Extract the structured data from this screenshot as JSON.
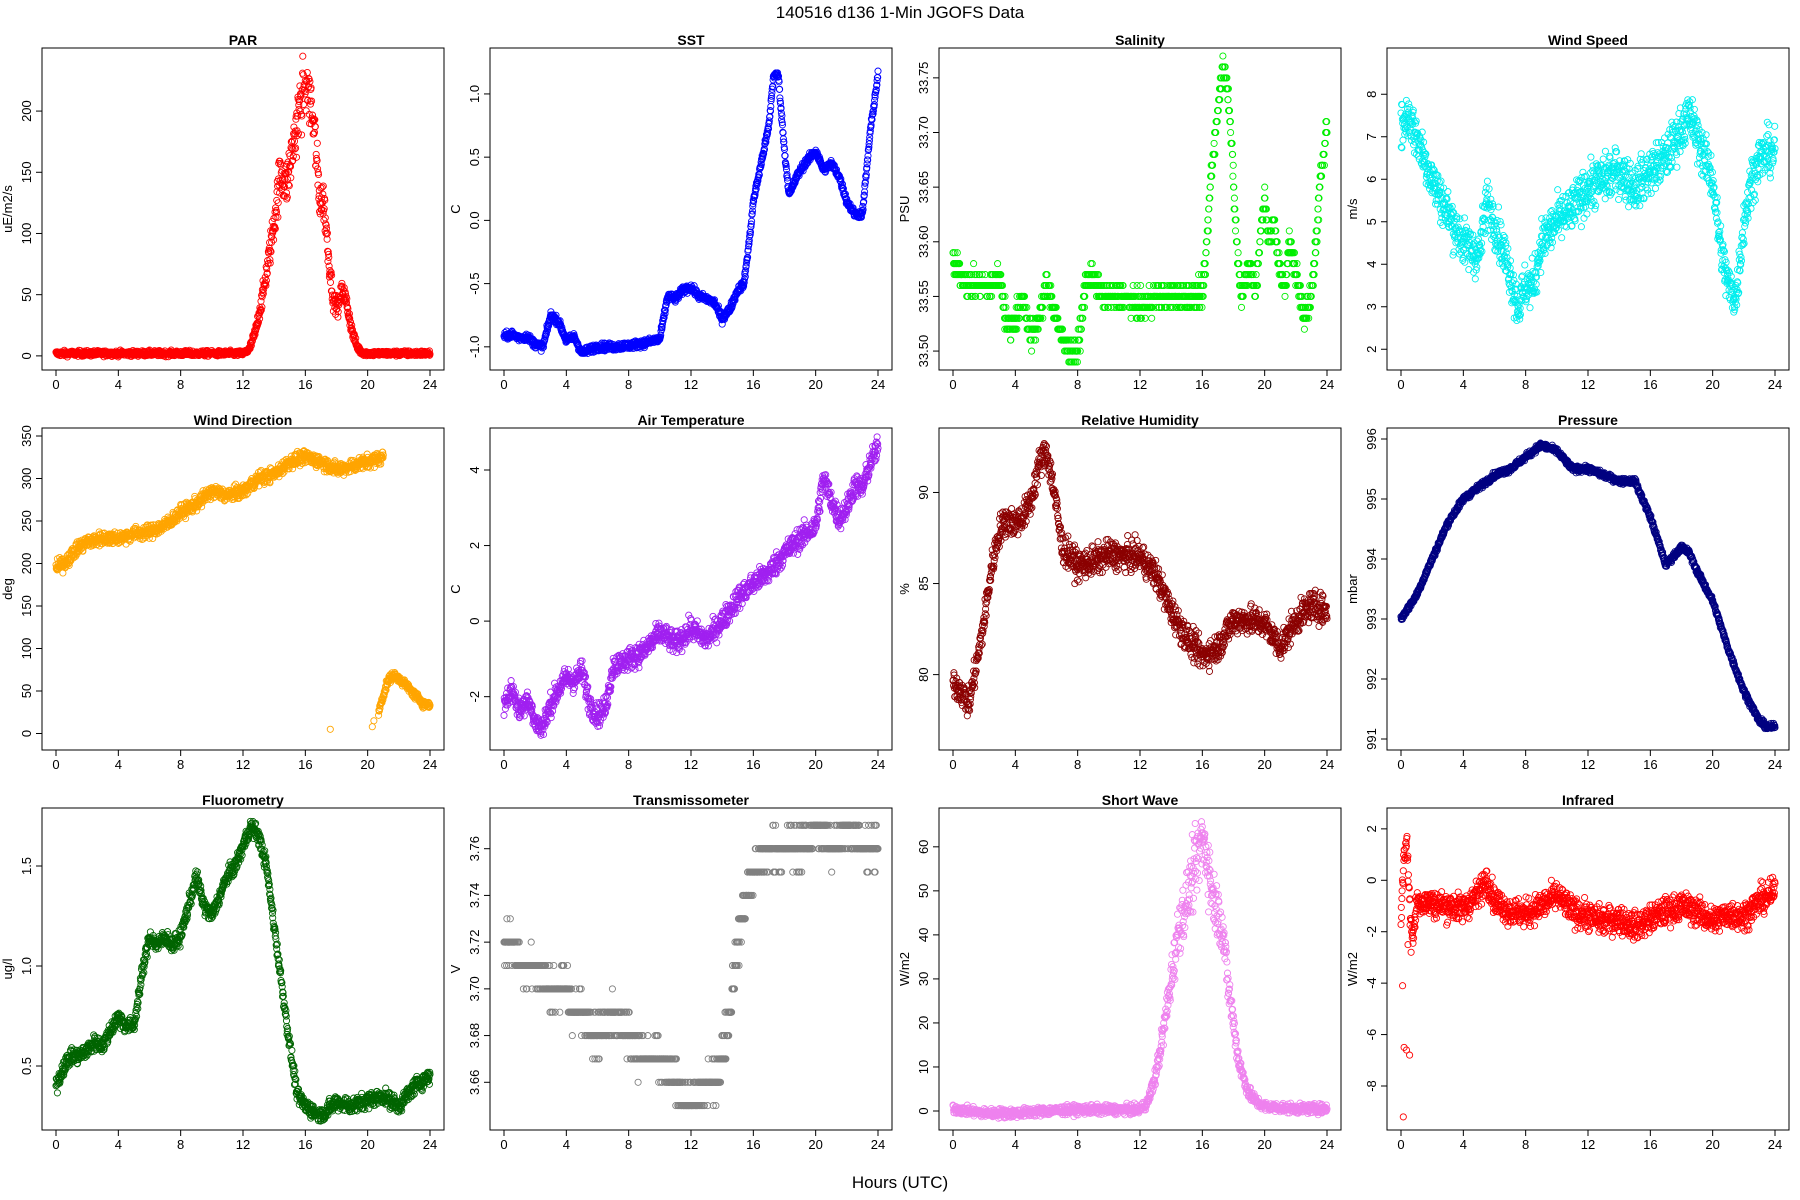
{
  "page_title": "140516   d136   1-Min  JGOFS Data",
  "x_axis_label": "Hours (UTC)",
  "chart_data": [
    {
      "type": "scatter",
      "title": "PAR",
      "ylabel": "uE/m2/s",
      "color": "#ff0000",
      "xlim": [
        0,
        24
      ],
      "ylim": [
        -5,
        245
      ],
      "xticks": [
        0,
        4,
        8,
        12,
        16,
        20,
        24
      ],
      "yticks": [
        0,
        50,
        100,
        150,
        200
      ],
      "ytick_labels": [
        "0",
        "50",
        "100",
        "150",
        "200"
      ],
      "series_x": [
        0,
        2,
        4,
        6,
        8,
        10,
        12,
        12.4,
        12.8,
        13.2,
        13.6,
        14,
        14.4,
        14.8,
        15.2,
        15.6,
        16,
        16.3,
        16.6,
        16.9,
        17.2,
        17.5,
        17.8,
        18.1,
        18.4,
        18.7,
        19,
        19.3,
        19.6,
        20,
        20.5,
        22,
        24
      ],
      "series_y": [
        2,
        2,
        2,
        2,
        2,
        2,
        2,
        5,
        20,
        45,
        75,
        110,
        150,
        140,
        170,
        200,
        230,
        210,
        180,
        130,
        125,
        80,
        45,
        40,
        55,
        40,
        20,
        8,
        3,
        2,
        2,
        2,
        2
      ],
      "noise": 0.12,
      "noise_abs": 2
    },
    {
      "type": "scatter",
      "title": "SST",
      "ylabel": "C",
      "color": "#0000ff",
      "xlim": [
        0,
        24
      ],
      "ylim": [
        -1.12,
        1.3
      ],
      "xticks": [
        0,
        4,
        8,
        12,
        16,
        20,
        24
      ],
      "yticks": [
        -1,
        -0.5,
        0,
        0.5,
        1
      ],
      "ytick_labels": [
        "-1.0",
        "-0.5",
        "0.0",
        "0.5",
        "1.0"
      ],
      "series_x": [
        0,
        0.5,
        1,
        1.5,
        2,
        2.5,
        3,
        3.5,
        4,
        4.5,
        5,
        5.5,
        6,
        7,
        8,
        9,
        10,
        10.5,
        11,
        11.5,
        12,
        12.5,
        13,
        13.5,
        14,
        14.5,
        15,
        15.4,
        15.8,
        16,
        16.5,
        17,
        17.3,
        17.6,
        18,
        18.3,
        18.8,
        19.3,
        20,
        20.5,
        21,
        21.5,
        22,
        22.5,
        23,
        23.5,
        24
      ],
      "series_y": [
        -0.92,
        -0.9,
        -0.93,
        -0.92,
        -0.98,
        -1.0,
        -0.75,
        -0.8,
        -0.95,
        -0.92,
        -1.05,
        -1.02,
        -1.0,
        -1.0,
        -0.99,
        -0.97,
        -0.94,
        -0.6,
        -0.62,
        -0.55,
        -0.53,
        -0.6,
        -0.62,
        -0.65,
        -0.78,
        -0.7,
        -0.55,
        -0.5,
        -0.1,
        0.15,
        0.45,
        0.75,
        1.15,
        1.15,
        0.55,
        0.2,
        0.35,
        0.45,
        0.55,
        0.4,
        0.45,
        0.35,
        0.15,
        0.05,
        0.05,
        0.7,
        1.15
      ],
      "noise": 0,
      "noise_abs": 0.03
    },
    {
      "type": "scatter",
      "title": "Salinity",
      "ylabel": "PSU",
      "color": "#00ee00",
      "xlim": [
        0,
        24
      ],
      "ylim": [
        33.49,
        33.77
      ],
      "xticks": [
        0,
        4,
        8,
        12,
        16,
        20,
        24
      ],
      "yticks": [
        33.5,
        33.55,
        33.6,
        33.65,
        33.7,
        33.75
      ],
      "ytick_labels": [
        "33.50",
        "33.55",
        "33.60",
        "33.65",
        "33.70",
        "33.75"
      ],
      "series_x": [
        0,
        0.5,
        1,
        1.5,
        2,
        2.5,
        3,
        3.5,
        4,
        4.5,
        5,
        5.5,
        6,
        6.5,
        7,
        7.5,
        8,
        8.5,
        9,
        9.5,
        10,
        11,
        12,
        13,
        14,
        15,
        16,
        16.3,
        16.6,
        17,
        17.3,
        17.6,
        17.9,
        18.2,
        18.5,
        18.8,
        19.1,
        19.4,
        19.7,
        20,
        20.3,
        20.6,
        21,
        21.3,
        21.6,
        22,
        22.3,
        22.6,
        23,
        23.3,
        23.6,
        24
      ],
      "series_y": [
        33.58,
        33.57,
        33.56,
        33.56,
        33.56,
        33.56,
        33.57,
        33.52,
        33.53,
        33.55,
        33.51,
        33.53,
        33.56,
        33.54,
        33.51,
        33.5,
        33.5,
        33.56,
        33.57,
        33.55,
        33.55,
        33.55,
        33.54,
        33.55,
        33.55,
        33.55,
        33.55,
        33.6,
        33.67,
        33.72,
        33.76,
        33.75,
        33.68,
        33.6,
        33.55,
        33.57,
        33.58,
        33.55,
        33.6,
        33.64,
        33.6,
        33.62,
        33.57,
        33.56,
        33.6,
        33.57,
        33.55,
        33.53,
        33.55,
        33.6,
        33.66,
        33.71
      ],
      "noise": 0,
      "noise_abs": 0.012,
      "quantize": 0.01
    },
    {
      "type": "scatter",
      "title": "Wind Speed",
      "ylabel": "m/s",
      "color": "#00eeee",
      "xlim": [
        0,
        24
      ],
      "ylim": [
        1.7,
        8.9
      ],
      "xticks": [
        0,
        4,
        8,
        12,
        16,
        20,
        24
      ],
      "yticks": [
        2,
        3,
        4,
        5,
        6,
        7,
        8
      ],
      "ytick_labels": [
        "2",
        "3",
        "4",
        "5",
        "6",
        "7",
        "8"
      ],
      "series_x": [
        0,
        0.5,
        1,
        1.5,
        2,
        3,
        4,
        5,
        5.5,
        6,
        7,
        7.5,
        8,
        8.5,
        9,
        10,
        11,
        12,
        13,
        14,
        15,
        16,
        17,
        18,
        18.5,
        19,
        19.5,
        20,
        20.3,
        20.6,
        21,
        21.5,
        22,
        22.5,
        23,
        24
      ],
      "series_y": [
        7.2,
        7.5,
        7.0,
        6.5,
        6.0,
        5.2,
        4.5,
        4.2,
        5.5,
        5.0,
        3.8,
        3.0,
        3.5,
        3.5,
        4.5,
        5.0,
        5.3,
        5.8,
        6.0,
        6.2,
        5.8,
        6.2,
        6.5,
        7.2,
        7.5,
        7.0,
        6.5,
        6.0,
        5.0,
        4.2,
        3.5,
        3.2,
        5.0,
        6.0,
        6.5,
        6.7
      ],
      "noise": 0,
      "noise_abs": 0.55
    },
    {
      "type": "scatter",
      "title": "Wind Direction",
      "ylabel": "deg",
      "color": "#ffa500",
      "xlim": [
        0,
        24
      ],
      "ylim": [
        -10,
        350
      ],
      "xticks": [
        0,
        4,
        8,
        12,
        16,
        20,
        24
      ],
      "yticks": [
        0,
        50,
        100,
        150,
        200,
        250,
        300,
        350
      ],
      "ytick_labels": [
        "0",
        "50",
        "100",
        "150",
        "200",
        "250",
        "300",
        "350"
      ],
      "series_x": [
        0,
        0.5,
        1,
        1.5,
        2,
        3,
        4,
        5,
        6,
        7,
        8,
        9,
        10,
        11,
        12,
        13,
        14,
        15,
        16,
        17,
        18,
        19,
        20,
        21
      ],
      "series_y": [
        195,
        200,
        210,
        220,
        225,
        230,
        230,
        235,
        237,
        245,
        260,
        270,
        285,
        280,
        285,
        300,
        305,
        320,
        325,
        320,
        310,
        315,
        320,
        325
      ],
      "noise": 0,
      "noise_abs": 8,
      "series2_x": [
        20.7,
        21,
        21.3,
        21.6,
        22,
        22.4,
        22.8,
        23.2,
        23.6,
        24
      ],
      "series2_y": [
        25,
        45,
        62,
        68,
        65,
        58,
        50,
        42,
        35,
        33
      ],
      "extra_x": [
        17.6,
        20.3,
        20.4
      ],
      "extra_y": [
        5,
        8,
        15
      ]
    },
    {
      "type": "scatter",
      "title": "Air Temperature",
      "ylabel": "C",
      "color": "#a020f0",
      "xlim": [
        0,
        24
      ],
      "ylim": [
        -3.2,
        4.9
      ],
      "xticks": [
        0,
        4,
        8,
        12,
        16,
        20,
        24
      ],
      "yticks": [
        -2,
        0,
        2,
        4
      ],
      "ytick_labels": [
        "-2",
        "0",
        "2",
        "4"
      ],
      "series_x": [
        0,
        0.5,
        1,
        1.5,
        2,
        2.5,
        3,
        3.5,
        4,
        4.5,
        5,
        5.5,
        6,
        6.5,
        7,
        8,
        9,
        10,
        11,
        12,
        13,
        14,
        15,
        16,
        17,
        18,
        19,
        20,
        20.5,
        21,
        21.5,
        22,
        22.5,
        23,
        23.5,
        24
      ],
      "series_y": [
        -2.2,
        -1.8,
        -2.4,
        -2.0,
        -2.7,
        -2.8,
        -2.2,
        -1.8,
        -1.5,
        -1.6,
        -1.3,
        -2.2,
        -2.5,
        -2.3,
        -1.2,
        -1.0,
        -0.8,
        -0.3,
        -0.6,
        -0.2,
        -0.5,
        0,
        0.6,
        1.0,
        1.3,
        1.8,
        2.2,
        2.5,
        3.8,
        3.2,
        2.7,
        3.0,
        3.6,
        3.5,
        4.2,
        4.6
      ],
      "noise": 0,
      "noise_abs": 0.3
    },
    {
      "type": "scatter",
      "title": "Relative Humidity",
      "ylabel": "%",
      "color": "#8b0000",
      "xlim": [
        0,
        24
      ],
      "ylim": [
        76.3,
        93.1
      ],
      "xticks": [
        0,
        4,
        8,
        12,
        16,
        20,
        24
      ],
      "yticks": [
        80,
        85,
        90
      ],
      "ytick_labels": [
        "80",
        "85",
        "90"
      ],
      "series_x": [
        0,
        0.5,
        1,
        1.5,
        2,
        2.5,
        3,
        3.5,
        4,
        4.5,
        5,
        5.5,
        6,
        6.5,
        7,
        7.5,
        8,
        9,
        10,
        11,
        12,
        13,
        14,
        15,
        16,
        17,
        18,
        19,
        20,
        21,
        22,
        23,
        24
      ],
      "series_y": [
        79.5,
        79.2,
        78.3,
        80.5,
        83,
        86,
        88,
        88.5,
        88.3,
        88.7,
        89.5,
        91.5,
        92.3,
        90,
        87,
        86.5,
        86.0,
        86.2,
        86.6,
        86.5,
        86.5,
        85.5,
        83.5,
        82,
        81,
        81.5,
        83,
        83,
        82.8,
        81.5,
        83,
        83.8,
        83.5
      ],
      "noise": 0,
      "noise_abs": 0.8
    },
    {
      "type": "scatter",
      "title": "Pressure",
      "ylabel": "mbar",
      "color": "#000080",
      "xlim": [
        0,
        24
      ],
      "ylim": [
        990.95,
        996.05
      ],
      "xticks": [
        0,
        4,
        8,
        12,
        16,
        20,
        24
      ],
      "yticks": [
        991,
        992,
        993,
        994,
        995,
        996
      ],
      "ytick_labels": [
        "991",
        "992",
        "993",
        "994",
        "995",
        "996"
      ],
      "series_x": [
        0,
        1,
        2,
        3,
        4,
        5,
        6,
        7,
        8,
        9,
        10,
        11,
        12,
        13,
        14,
        15,
        16,
        17,
        18,
        18.5,
        19,
        20,
        21,
        22,
        23,
        23.5,
        24
      ],
      "series_y": [
        993.0,
        993.4,
        994.0,
        994.6,
        995.0,
        995.2,
        995.4,
        995.5,
        995.7,
        995.9,
        995.8,
        995.5,
        995.5,
        995.4,
        995.3,
        995.3,
        994.7,
        993.9,
        994.2,
        994.1,
        993.8,
        993.3,
        992.5,
        991.8,
        991.3,
        991.2,
        991.2
      ],
      "noise": 0,
      "noise_abs": 0.05
    },
    {
      "type": "scatter",
      "title": "Fluorometry",
      "ylabel": "ug/l",
      "color": "#006400",
      "xlim": [
        0,
        24
      ],
      "ylim": [
        0.22,
        1.75
      ],
      "xticks": [
        0,
        4,
        8,
        12,
        16,
        20,
        24
      ],
      "yticks": [
        0.5,
        1.0,
        1.5
      ],
      "ytick_labels": [
        "0.5",
        "1.0",
        "1.5"
      ],
      "series_x": [
        0,
        0.5,
        1,
        1.5,
        2,
        2.5,
        3,
        3.5,
        4,
        4.5,
        5,
        5.5,
        6,
        6.5,
        7,
        7.5,
        8,
        8.5,
        9,
        9.5,
        10,
        10.5,
        11,
        11.5,
        12,
        12.5,
        13,
        13.5,
        14,
        14.5,
        15,
        15.5,
        16,
        17,
        18,
        19,
        20,
        21,
        22,
        23,
        24
      ],
      "series_y": [
        0.4,
        0.5,
        0.55,
        0.55,
        0.58,
        0.62,
        0.6,
        0.68,
        0.75,
        0.7,
        0.7,
        0.95,
        1.15,
        1.1,
        1.15,
        1.1,
        1.15,
        1.3,
        1.45,
        1.3,
        1.25,
        1.35,
        1.45,
        1.5,
        1.6,
        1.7,
        1.65,
        1.5,
        1.2,
        0.9,
        0.6,
        0.35,
        0.3,
        0.25,
        0.32,
        0.3,
        0.33,
        0.35,
        0.3,
        0.4,
        0.45
      ],
      "noise": 0,
      "noise_abs": 0.04
    },
    {
      "type": "scatter",
      "title": "Transmissometer",
      "ylabel": "V",
      "color": "#808080",
      "xlim": [
        0,
        24
      ],
      "ylim": [
        3.643,
        3.774
      ],
      "xticks": [
        0,
        4,
        8,
        12,
        16,
        20,
        24
      ],
      "yticks": [
        3.66,
        3.68,
        3.7,
        3.72,
        3.74,
        3.76
      ],
      "ytick_labels": [
        "3.66",
        "3.68",
        "3.70",
        "3.72",
        "3.74",
        "3.76"
      ],
      "series_x": [
        0,
        0.5,
        1,
        2,
        3,
        4,
        4.5,
        5,
        6,
        7,
        8,
        9,
        10,
        11,
        12,
        13,
        13.5,
        14,
        14.5,
        15,
        15.5,
        16,
        17,
        18,
        19,
        20,
        21,
        22,
        23,
        24
      ],
      "series_y": [
        3.72,
        3.72,
        3.71,
        3.71,
        3.7,
        3.7,
        3.69,
        3.69,
        3.68,
        3.69,
        3.68,
        3.67,
        3.67,
        3.66,
        3.65,
        3.66,
        3.66,
        3.67,
        3.69,
        3.72,
        3.74,
        3.75,
        3.76,
        3.76,
        3.76,
        3.77,
        3.76,
        3.77,
        3.76,
        3.76
      ],
      "noise": 0,
      "noise_abs": 0.008,
      "quantize": 0.01
    },
    {
      "type": "scatter",
      "title": "Short Wave",
      "ylabel": "W/m2",
      "color": "#ee82ee",
      "xlim": [
        0,
        24
      ],
      "ylim": [
        -2.5,
        67
      ],
      "xticks": [
        0,
        4,
        8,
        12,
        16,
        20,
        24
      ],
      "yticks": [
        0,
        10,
        20,
        30,
        40,
        50,
        60
      ],
      "ytick_labels": [
        "0",
        "10",
        "20",
        "30",
        "40",
        "50",
        "60"
      ],
      "series_x": [
        0,
        1,
        2,
        4,
        6,
        8,
        10,
        12,
        12.5,
        13,
        13.5,
        14,
        14.5,
        15,
        15.5,
        16,
        16.3,
        16.6,
        17,
        17.3,
        17.6,
        18,
        18.3,
        18.6,
        19,
        19.5,
        20,
        22,
        24
      ],
      "series_y": [
        0.5,
        0,
        -0.5,
        -0.5,
        0,
        0.3,
        0.3,
        0.3,
        2,
        8,
        18,
        30,
        42,
        48,
        55,
        62,
        58,
        50,
        45,
        42,
        30,
        20,
        12,
        8,
        4,
        2,
        1,
        0.5,
        0.5
      ],
      "noise": 0.12,
      "noise_abs": 1
    },
    {
      "type": "scatter",
      "title": "Infrared",
      "ylabel": "W/m2",
      "color": "#ff0000",
      "xlim": [
        0,
        24
      ],
      "ylim": [
        -9.4,
        2.5
      ],
      "xticks": [
        0,
        4,
        8,
        12,
        16,
        20,
        24
      ],
      "yticks": [
        -8,
        -6,
        -4,
        -2,
        0,
        2
      ],
      "ytick_labels": [
        "-8",
        "-6",
        "-4",
        "-2",
        "0",
        "2"
      ],
      "series_x": [
        0,
        0.2,
        0.4,
        0.6,
        0.8,
        1,
        2,
        3,
        4,
        5,
        5.5,
        6,
        7,
        8,
        9,
        10,
        11,
        12,
        13,
        14,
        15,
        16,
        17,
        18,
        19,
        20,
        21,
        22,
        23,
        24
      ],
      "series_y": [
        -1.5,
        1.2,
        1.3,
        -1.5,
        -2.2,
        -0.8,
        -0.9,
        -1.0,
        -1.1,
        -0.5,
        0.1,
        -0.8,
        -1.2,
        -1.3,
        -1.0,
        -0.6,
        -1.2,
        -1.4,
        -1.6,
        -1.5,
        -1.8,
        -1.5,
        -1.2,
        -1.0,
        -1.2,
        -1.6,
        -1.3,
        -1.4,
        -0.8,
        -0.5
      ],
      "noise": 0,
      "noise_abs": 0.55,
      "extra_x": [
        0.15,
        0.2,
        0.35,
        0.55,
        0.65,
        0.1,
        0.45
      ],
      "extra_y": [
        -9.2,
        -6.5,
        -6.6,
        -6.8,
        -2.8,
        -4.1,
        -2.5
      ]
    }
  ]
}
